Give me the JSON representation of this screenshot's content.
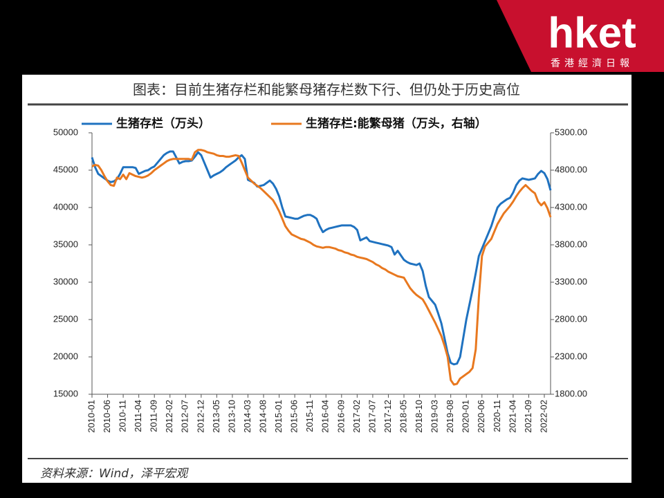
{
  "header": {
    "logo": "hket",
    "subtitle": "香港經濟日報"
  },
  "chart_data": {
    "type": "line",
    "title": "图表：目前生猪存栏和能繁母猪存栏数下行、但仍处于历史高位",
    "source": "资料来源：Wind，泽平宏观",
    "categories": [
      "2010-01",
      null,
      null,
      null,
      null,
      "2010-06",
      null,
      null,
      null,
      null,
      "2010-11",
      null,
      null,
      null,
      null,
      "2011-04",
      null,
      null,
      null,
      null,
      "2011-09",
      null,
      null,
      null,
      null,
      "2012-02",
      null,
      null,
      null,
      null,
      "2012-07",
      null,
      null,
      null,
      null,
      "2012-12",
      null,
      null,
      null,
      null,
      "2013-05",
      null,
      null,
      null,
      null,
      "2013-10",
      null,
      null,
      null,
      null,
      "2014-03",
      null,
      null,
      null,
      null,
      "2014-08",
      null,
      null,
      null,
      null,
      "2015-01",
      null,
      null,
      null,
      null,
      "2015-06",
      null,
      null,
      null,
      null,
      "2015-11",
      null,
      null,
      null,
      null,
      "2016-04",
      null,
      null,
      null,
      null,
      "2016-09",
      null,
      null,
      null,
      null,
      "2017-02",
      null,
      null,
      null,
      null,
      "2017-07",
      null,
      null,
      null,
      null,
      "2017-12",
      null,
      null,
      null,
      null,
      "2018-05",
      null,
      null,
      null,
      null,
      "2018-10",
      null,
      null,
      null,
      null,
      "2019-03",
      null,
      null,
      null,
      null,
      "2019-08",
      null,
      null,
      null,
      null,
      "2020-01",
      null,
      null,
      null,
      null,
      "2020-06",
      null,
      null,
      null,
      null,
      "2020-11",
      null,
      null,
      null,
      null,
      "2021-04",
      null,
      null,
      null,
      null,
      "2021-09",
      null,
      null,
      null,
      null,
      "2022-02",
      null,
      null
    ],
    "series": [
      {
        "name": "生猪存栏（万头）",
        "color": "#1f72c0",
        "axis": "y",
        "values": [
          46700,
          45400,
          44500,
          44200,
          43900,
          43600,
          43400,
          43500,
          43800,
          44500,
          45400,
          45400,
          45400,
          45400,
          45300,
          44500,
          44700,
          44900,
          45000,
          45300,
          45500,
          46000,
          46500,
          47000,
          47300,
          47500,
          47500,
          46700,
          45900,
          46100,
          46200,
          46200,
          46300,
          46800,
          47400,
          47000,
          46000,
          45000,
          44000,
          44300,
          44500,
          44700,
          45000,
          45400,
          45700,
          46000,
          46300,
          46700,
          47000,
          46500,
          43700,
          43500,
          43300,
          42800,
          42900,
          43000,
          43300,
          43600,
          43200,
          42500,
          41500,
          40000,
          38800,
          38700,
          38600,
          38500,
          38500,
          38700,
          38900,
          39000,
          39000,
          38800,
          38500,
          37500,
          36700,
          37000,
          37200,
          37300,
          37400,
          37500,
          37600,
          37600,
          37600,
          37600,
          37400,
          37000,
          35600,
          35800,
          36000,
          35500,
          35400,
          35300,
          35200,
          35100,
          35000,
          34900,
          34700,
          33700,
          34200,
          33600,
          33000,
          32700,
          32500,
          32400,
          32300,
          32500,
          31500,
          29500,
          28000,
          27500,
          27000,
          25800,
          24500,
          22500,
          20500,
          19200,
          19000,
          19100,
          20000,
          22500,
          25000,
          27000,
          29000,
          31200,
          33500,
          34500,
          35500,
          36500,
          37500,
          38800,
          40000,
          40500,
          40800,
          41100,
          41300,
          42000,
          43000,
          43600,
          43900,
          43800,
          43700,
          43800,
          43900,
          44500,
          44900,
          44600,
          43800,
          42300
        ]
      },
      {
        "name": "生猪存栏:能繁母猪（万头，右轴）",
        "color": "#e8781f",
        "axis": "y2",
        "values": [
          4850,
          4870,
          4860,
          4800,
          4720,
          4650,
          4600,
          4590,
          4700,
          4680,
          4740,
          4680,
          4760,
          4740,
          4720,
          4710,
          4700,
          4710,
          4730,
          4760,
          4800,
          4830,
          4860,
          4890,
          4920,
          4940,
          4950,
          4950,
          4950,
          4950,
          4950,
          4950,
          4940,
          5040,
          5070,
          5070,
          5060,
          5040,
          5030,
          5020,
          5000,
          4990,
          4990,
          4980,
          4980,
          4990,
          5000,
          4990,
          4900,
          4800,
          4700,
          4660,
          4620,
          4590,
          4560,
          4520,
          4480,
          4440,
          4400,
          4330,
          4250,
          4150,
          4050,
          3990,
          3940,
          3920,
          3900,
          3880,
          3870,
          3850,
          3830,
          3800,
          3780,
          3770,
          3760,
          3770,
          3770,
          3760,
          3750,
          3730,
          3720,
          3700,
          3690,
          3670,
          3660,
          3640,
          3630,
          3620,
          3610,
          3590,
          3570,
          3540,
          3520,
          3490,
          3470,
          3440,
          3420,
          3400,
          3380,
          3370,
          3360,
          3290,
          3220,
          3170,
          3130,
          3100,
          3070,
          3000,
          2920,
          2840,
          2760,
          2670,
          2580,
          2450,
          2300,
          1990,
          1930,
          1940,
          2010,
          2040,
          2070,
          2100,
          2150,
          2400,
          3100,
          3650,
          3780,
          3830,
          3880,
          3980,
          4080,
          4150,
          4220,
          4270,
          4320,
          4380,
          4450,
          4510,
          4560,
          4600,
          4560,
          4520,
          4490,
          4380,
          4330,
          4370,
          4290,
          4170
        ]
      }
    ],
    "ylim": [
      15000,
      50000
    ],
    "yticks": [
      15000,
      20000,
      25000,
      30000,
      35000,
      40000,
      45000,
      50000
    ],
    "y2lim": [
      1800,
      5300
    ],
    "y2ticks": [
      {
        "value": 1800,
        "label": "1800.00"
      },
      {
        "value": 2300,
        "label": "2300.00"
      },
      {
        "value": 2800,
        "label": "2800.00"
      },
      {
        "value": 3300,
        "label": "3300.00"
      },
      {
        "value": 3800,
        "label": "3800.00"
      },
      {
        "value": 4300,
        "label": "4300.00"
      },
      {
        "value": 4800,
        "label": "4800.00"
      },
      {
        "value": 5300,
        "label": "5300.00"
      }
    ],
    "grid": false,
    "legend": "top"
  }
}
